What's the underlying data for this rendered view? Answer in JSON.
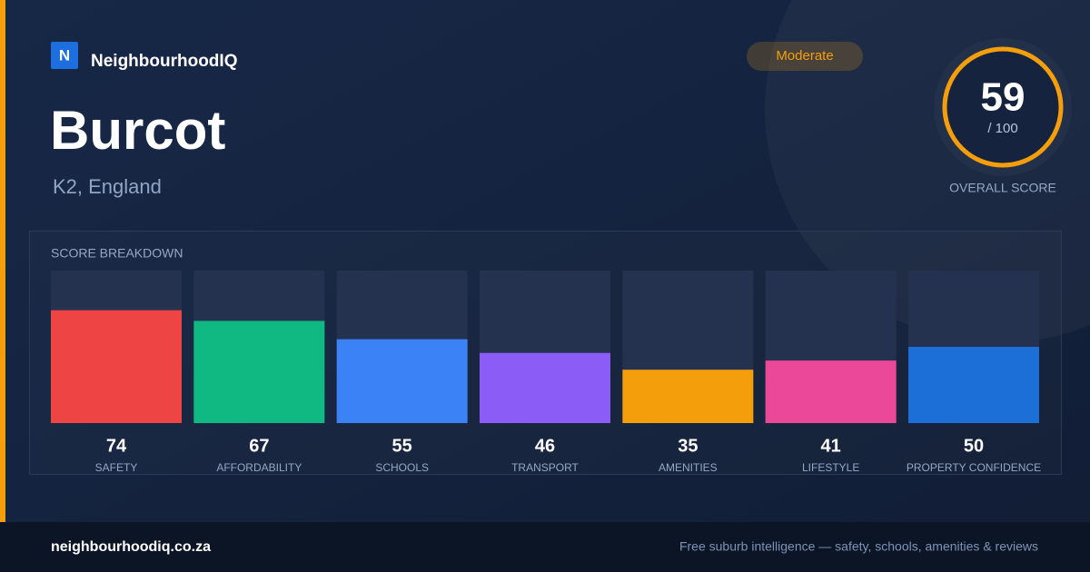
{
  "header": {
    "logo_letter": "N",
    "brand": "NeighbourhoodIQ",
    "badge": "Moderate"
  },
  "place": {
    "name": "Burcot",
    "region": "K2, England"
  },
  "overall": {
    "score": 59,
    "max": {
      "value": 100,
      "label": "/ 100"
    },
    "caption": "OVERALL SCORE"
  },
  "chart_data": {
    "type": "bar",
    "title": "SCORE BREAKDOWN",
    "categories": [
      "SAFETY",
      "AFFORDABILITY",
      "SCHOOLS",
      "TRANSPORT",
      "AMENITIES",
      "LIFESTYLE",
      "PROPERTY CONFIDENCE"
    ],
    "values": [
      74,
      67,
      55,
      46,
      35,
      41,
      50
    ],
    "colors": [
      "#ef4444",
      "#10b981",
      "#3b82f6",
      "#8b5cf6",
      "#f59e0b",
      "#ec4899",
      "#1d6fd8"
    ],
    "ylim": [
      0,
      100
    ]
  },
  "footer": {
    "site": "neighbourhoodiq.co.za",
    "tagline": "Free suburb intelligence — safety, schools, amenities & reviews"
  }
}
